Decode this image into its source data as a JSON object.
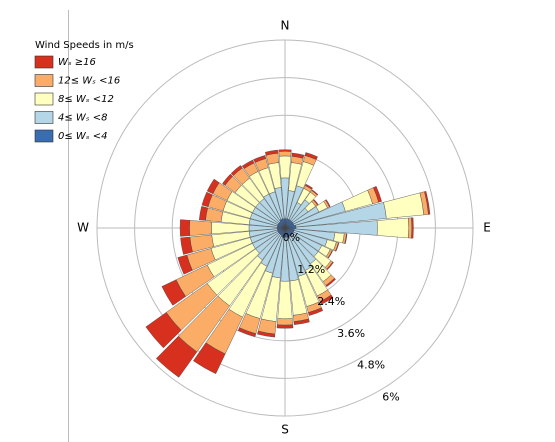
{
  "chart_data": {
    "type": "windrose",
    "legend_title": "Wind Speeds in m/s",
    "x": [
      0,
      10,
      20,
      30,
      40,
      50,
      60,
      70,
      80,
      90,
      100,
      110,
      120,
      130,
      140,
      150,
      160,
      170,
      180,
      190,
      200,
      210,
      220,
      230,
      240,
      250,
      260,
      270,
      280,
      290,
      300,
      310,
      320,
      330,
      340,
      350
    ],
    "xticks": [
      {
        "value": 0,
        "label": "N"
      },
      {
        "value": 90,
        "label": "E"
      },
      {
        "value": 180,
        "label": "S"
      },
      {
        "value": 270,
        "label": "W"
      }
    ],
    "ylim": [
      0,
      6
    ],
    "yticks": [
      {
        "value": 0,
        "label": "0%"
      },
      {
        "value": 1.2,
        "label": "1.2%"
      },
      {
        "value": 2.4,
        "label": "2.4%"
      },
      {
        "value": 3.6,
        "label": "3.6%"
      },
      {
        "value": 4.8,
        "label": "4.8%"
      },
      {
        "value": 6,
        "label": "6%"
      }
    ],
    "series": [
      {
        "name": "0≤ Wₛ <4",
        "color": "#3a6cb0",
        "values": [
          0.3,
          0.3,
          0.3,
          0.3,
          0.3,
          0.3,
          0.3,
          0.3,
          0.35,
          0.35,
          0.3,
          0.3,
          0.3,
          0.3,
          0.3,
          0.3,
          0.3,
          0.3,
          0.3,
          0.3,
          0.3,
          0.25,
          0.25,
          0.25,
          0.25,
          0.25,
          0.25,
          0.25,
          0.25,
          0.25,
          0.25,
          0.25,
          0.25,
          0.3,
          0.3,
          0.3
        ]
      },
      {
        "name": "4≤ Wₛ <8",
        "color": "#b4d6e6",
        "values": [
          1.3,
          0.9,
          1.1,
          0.6,
          0.8,
          0.6,
          0.9,
          1.7,
          2.9,
          2.6,
          1.3,
          1.1,
          1.0,
          1.0,
          1.1,
          1.2,
          1.3,
          1.4,
          1.4,
          1.3,
          1.2,
          1.1,
          1.0,
          0.9,
          0.9,
          0.9,
          0.9,
          0.9,
          0.9,
          0.9,
          0.9,
          0.9,
          0.9,
          0.9,
          0.9,
          1.0
        ]
      },
      {
        "name": "8≤ Wₛ <12",
        "color": "#ffffc0",
        "values": [
          0.7,
          0.9,
          0.8,
          0.5,
          0.3,
          0.3,
          0.3,
          0.9,
          1.2,
          1.0,
          0.3,
          0.3,
          0.3,
          0.5,
          0.7,
          0.9,
          1.0,
          1.1,
          1.2,
          1.4,
          1.5,
          1.8,
          1.8,
          1.9,
          1.6,
          1.3,
          1.2,
          1.2,
          0.9,
          0.9,
          0.9,
          0.8,
          0.8,
          0.8,
          0.8,
          0.8
        ]
      },
      {
        "name": "12≤ Wₛ <16",
        "color": "#fbad68",
        "values": [
          0.15,
          0.2,
          0.2,
          0.1,
          0.07,
          0.07,
          0.07,
          0.2,
          0.15,
          0.1,
          0.07,
          0.07,
          0.07,
          0.07,
          0.15,
          0.2,
          0.2,
          0.2,
          0.2,
          0.4,
          0.5,
          1.3,
          1.8,
          1.6,
          1.1,
          0.8,
          0.7,
          0.7,
          0.5,
          0.5,
          0.5,
          0.4,
          0.4,
          0.3,
          0.3,
          0.3
        ]
      },
      {
        "name": "Wₛ ≥16",
        "color": "#d7301f",
        "values": [
          0.05,
          0.1,
          0.1,
          0.05,
          0.03,
          0.03,
          0.03,
          0.1,
          0.05,
          0.05,
          0.02,
          0.02,
          0.02,
          0.03,
          0.05,
          0.1,
          0.1,
          0.1,
          0.1,
          0.1,
          0.1,
          0.7,
          1.0,
          0.8,
          0.5,
          0.3,
          0.3,
          0.3,
          0.2,
          0.2,
          0.2,
          0.1,
          0.1,
          0.1,
          0.1,
          0.1
        ]
      }
    ]
  }
}
